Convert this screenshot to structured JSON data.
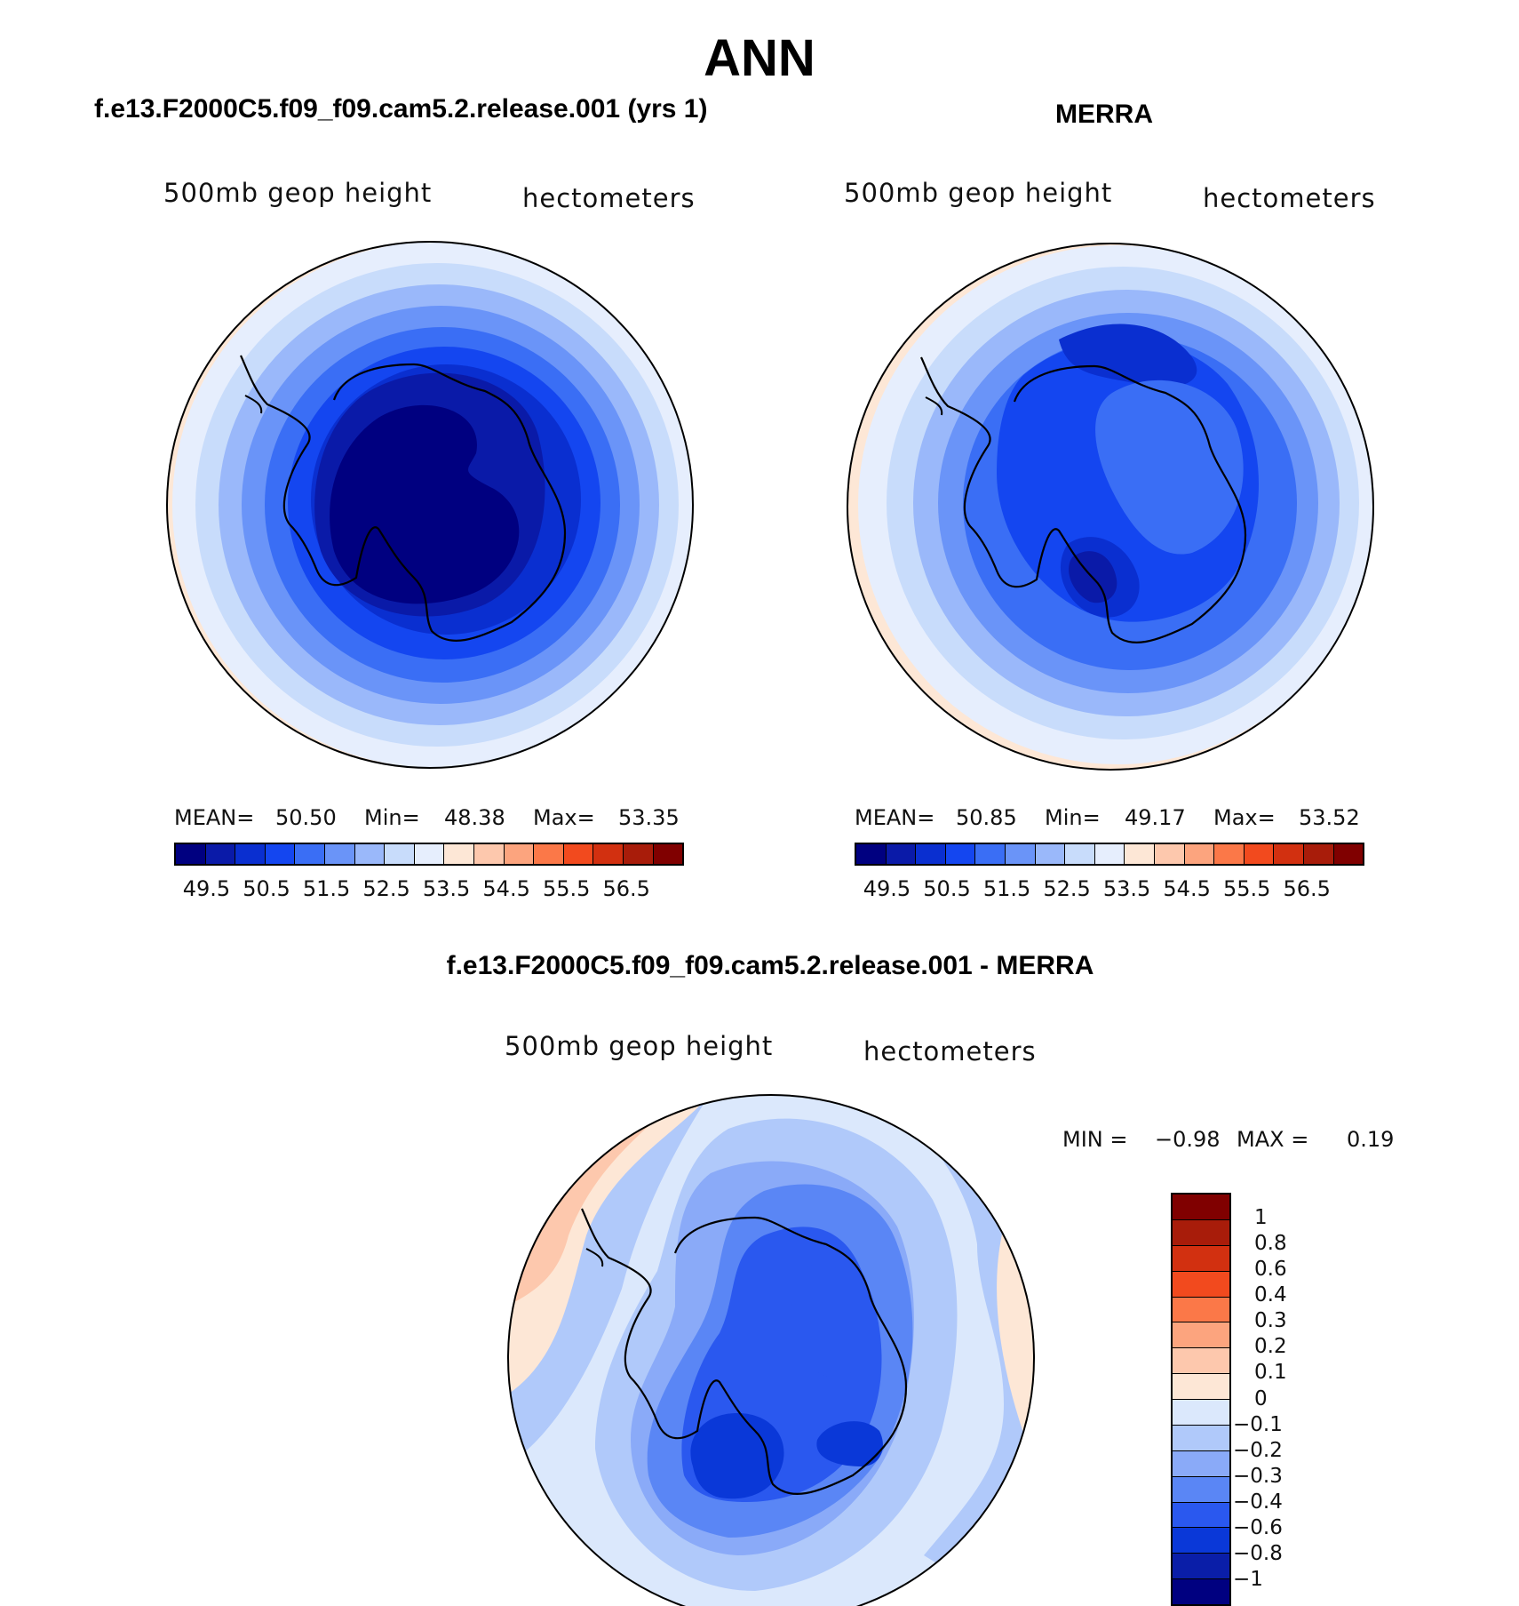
{
  "title": "ANN",
  "panels": [
    {
      "case_title": "f.e13.F2000C5.f09_f09.cam5.2.release.001 (yrs 1)",
      "variable": "500mb geop height",
      "units": "hectometers",
      "stats": {
        "mean_label": "MEAN=",
        "mean": "50.50",
        "min_label": "Min=",
        "min": "48.38",
        "max_label": "Max=",
        "max": "53.35"
      }
    },
    {
      "case_title": "MERRA",
      "variable": "500mb geop height",
      "units": "hectometers",
      "stats": {
        "mean_label": "MEAN=",
        "mean": "50.85",
        "min_label": "Min=",
        "min": "49.17",
        "max_label": "Max=",
        "max": "53.52"
      }
    }
  ],
  "colorbar_abs": {
    "colors": [
      "#000080",
      "#0a1aa8",
      "#0a2fd0",
      "#1446f0",
      "#3a6ef5",
      "#6a94f8",
      "#9ab8fa",
      "#c8dcfb",
      "#e6eefd",
      "#fde7d6",
      "#fdc8ad",
      "#fca47e",
      "#fb7848",
      "#f24a1e",
      "#d23010",
      "#a81c0a",
      "#800000"
    ],
    "labels": [
      "49.5",
      "50.5",
      "51.5",
      "52.5",
      "53.5",
      "54.5",
      "55.5",
      "56.5"
    ]
  },
  "diff": {
    "title": "f.e13.F2000C5.f09_f09.cam5.2.release.001 - MERRA",
    "variable": "500mb geop height",
    "units": "hectometers",
    "min_label": "MIN =",
    "min": "−0.98",
    "max_label": "MAX =",
    "max": "0.19"
  },
  "colorbar_diff": {
    "colors_top_to_bottom": [
      "#800000",
      "#a81c0a",
      "#d23010",
      "#f24a1e",
      "#fb7848",
      "#fca47e",
      "#fdc8ad",
      "#fde7d6",
      "#dbe8fc",
      "#b0c9fa",
      "#8aaaf8",
      "#5a86f5",
      "#2a58ef",
      "#0a38d8",
      "#0a1ea8",
      "#000080"
    ],
    "labels": [
      "1",
      "0.8",
      "0.6",
      "0.4",
      "0.3",
      "0.2",
      "0.1",
      "0",
      "−0.1",
      "−0.2",
      "−0.3",
      "−0.4",
      "−0.6",
      "−0.8",
      "−1"
    ]
  }
}
